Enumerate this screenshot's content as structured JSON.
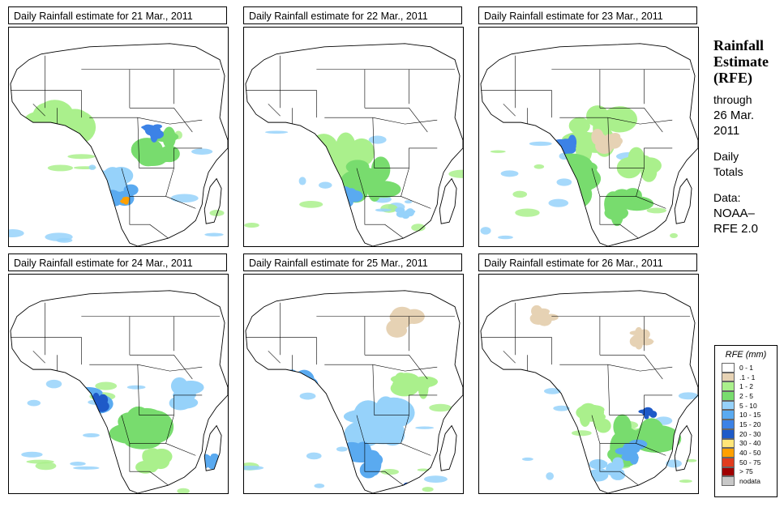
{
  "panels": [
    {
      "title": "Daily Rainfall estimate for  21 Mar., 2011"
    },
    {
      "title": "Daily Rainfall estimate for  22 Mar., 2011"
    },
    {
      "title": "Daily Rainfall estimate for  23 Mar., 2011"
    },
    {
      "title": "Daily Rainfall estimate for  24 Mar., 2011"
    },
    {
      "title": "Daily Rainfall estimate for  25 Mar., 2011"
    },
    {
      "title": "Daily Rainfall estimate for  26 Mar., 2011"
    }
  ],
  "side": {
    "heading_1": "Rainfall",
    "heading_2": "Estimate",
    "heading_3": "(RFE)",
    "through": "through",
    "date": "26 Mar.",
    "year": "2011",
    "daily": "Daily",
    "totals": "Totals",
    "data_label": "Data:",
    "source_1": "NOAA–",
    "source_2": "RFE 2.0"
  },
  "legend": {
    "title": "RFE (mm)",
    "items": [
      {
        "label": "0 - 1",
        "color": "#ffffff"
      },
      {
        "label": ".1 - 1",
        "color": "#e6d2b4"
      },
      {
        "label": "1 - 2",
        "color": "#aaf08c"
      },
      {
        "label": "2 - 5",
        "color": "#78dc6e"
      },
      {
        "label": "5 - 10",
        "color": "#96d2fa"
      },
      {
        "label": "10 - 15",
        "color": "#5aaaf0"
      },
      {
        "label": "15 - 20",
        "color": "#3c82e6"
      },
      {
        "label": "20 - 30",
        "color": "#1e5ac8"
      },
      {
        "label": "30 - 40",
        "color": "#ffe678"
      },
      {
        "label": "40 - 50",
        "color": "#ffa000"
      },
      {
        "label": "50 - 75",
        "color": "#e13c1e"
      },
      {
        "label": "> 75",
        "color": "#a00000"
      },
      {
        "label": "nodata",
        "color": "#c8c8c8"
      }
    ]
  }
}
